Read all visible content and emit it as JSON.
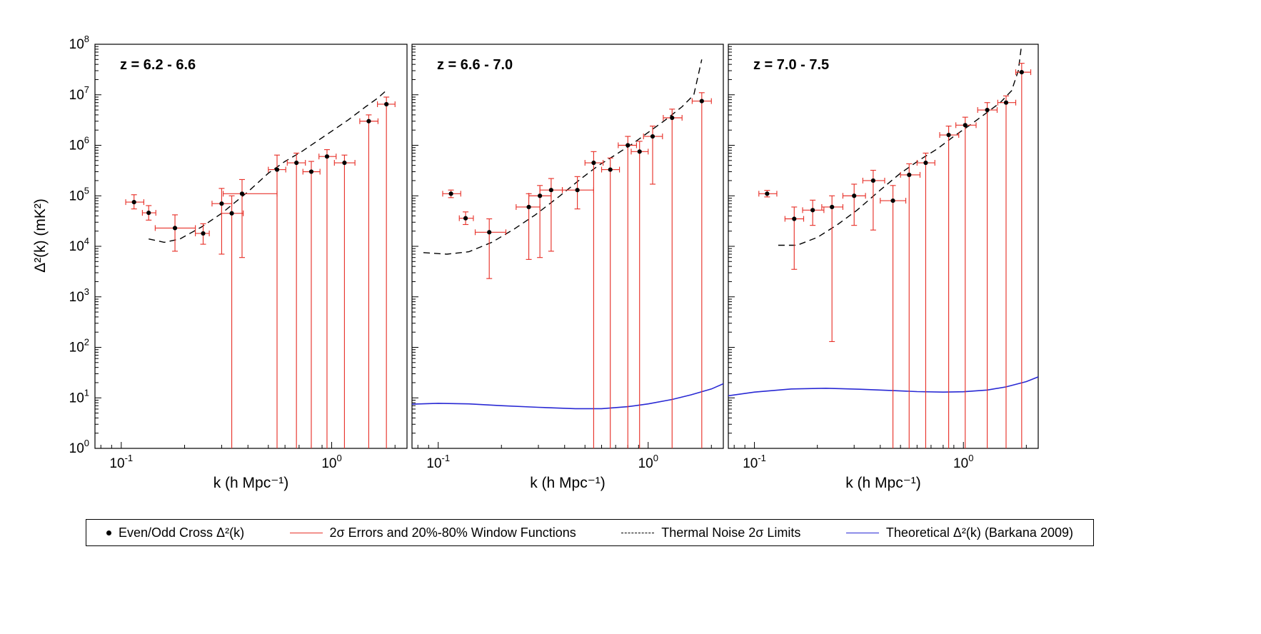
{
  "colors": {
    "error_bar": "#e8332b",
    "noise": "#000000",
    "theory": "#2929d4",
    "marker": "#000000",
    "background": "#ffffff"
  },
  "axes": {
    "ylabel": "Δ²(k)  (mK²)",
    "xscale": "log",
    "yscale": "log",
    "xlim": [
      0.075,
      2.28
    ],
    "ylim": [
      1,
      100000000
    ],
    "x_ticks": [
      {
        "v": 0.1,
        "base": "10",
        "exp": "-1"
      },
      {
        "v": 1,
        "base": "10",
        "exp": "0"
      }
    ],
    "x_minor": [
      0.08,
      0.09,
      0.2,
      0.3,
      0.4,
      0.5,
      0.6,
      0.7,
      0.8,
      0.9,
      2
    ],
    "y_ticks": [
      {
        "v": 1,
        "base": "10",
        "exp": "0"
      },
      {
        "v": 10,
        "base": "10",
        "exp": "1"
      },
      {
        "v": 100,
        "base": "10",
        "exp": "2"
      },
      {
        "v": 1000,
        "base": "10",
        "exp": "3"
      },
      {
        "v": 10000,
        "base": "10",
        "exp": "4"
      },
      {
        "v": 100000,
        "base": "10",
        "exp": "5"
      },
      {
        "v": 1000000,
        "base": "10",
        "exp": "6"
      },
      {
        "v": 10000000,
        "base": "10",
        "exp": "7"
      },
      {
        "v": 100000000,
        "base": "10",
        "exp": "8"
      }
    ]
  },
  "legend": {
    "items": [
      {
        "marker": "dot",
        "label": "Even/Odd Cross Δ²(k)"
      },
      {
        "marker": "red-line",
        "label": "2σ  Errors and 20%-80% Window Functions"
      },
      {
        "marker": "dashed-line",
        "label": "Thermal Noise 2σ Limits"
      },
      {
        "marker": "blue-line",
        "label": "Theoretical Δ²(k) (Barkana 2009)"
      }
    ]
  },
  "chart_data": [
    {
      "type": "scatter",
      "title": "z = 6.2 - 6.6",
      "xlabel": "k (h Mpc⁻¹)",
      "points": [
        {
          "k": 0.115,
          "d2": 75000,
          "xlo": 0.105,
          "xhi": 0.128,
          "ylo": 55000,
          "yhi": 105000
        },
        {
          "k": 0.135,
          "d2": 46000,
          "xlo": 0.126,
          "xhi": 0.146,
          "ylo": 33000,
          "yhi": 64000
        },
        {
          "k": 0.18,
          "d2": 23000,
          "xlo": 0.145,
          "xhi": 0.225,
          "ylo": 8000,
          "yhi": 42000
        },
        {
          "k": 0.245,
          "d2": 18000,
          "xlo": 0.225,
          "xhi": 0.262,
          "ylo": 11000,
          "yhi": 28000
        },
        {
          "k": 0.3,
          "d2": 70000,
          "xlo": 0.27,
          "xhi": 0.335,
          "ylo": 7000,
          "yhi": 140000
        },
        {
          "k": 0.335,
          "d2": 45000,
          "xlo": 0.3,
          "xhi": 0.38,
          "ylo": 1,
          "yhi": 100000
        },
        {
          "k": 0.375,
          "d2": 110000,
          "xlo": 0.305,
          "xhi": 0.55,
          "ylo": 6000,
          "yhi": 210000
        },
        {
          "k": 0.55,
          "d2": 330000,
          "xlo": 0.5,
          "xhi": 0.605,
          "ylo": 1,
          "yhi": 640000
        },
        {
          "k": 0.68,
          "d2": 450000,
          "xlo": 0.615,
          "xhi": 0.75,
          "ylo": 1,
          "yhi": 700000
        },
        {
          "k": 0.8,
          "d2": 300000,
          "xlo": 0.73,
          "xhi": 0.88,
          "ylo": 1,
          "yhi": 480000
        },
        {
          "k": 0.95,
          "d2": 600000,
          "xlo": 0.87,
          "xhi": 1.05,
          "ylo": 1,
          "yhi": 820000
        },
        {
          "k": 1.15,
          "d2": 450000,
          "xlo": 1.03,
          "xhi": 1.29,
          "ylo": 1,
          "yhi": 640000
        },
        {
          "k": 1.5,
          "d2": 3000000,
          "xlo": 1.36,
          "xhi": 1.66,
          "ylo": 1,
          "yhi": 4000000
        },
        {
          "k": 1.82,
          "d2": 6500000,
          "xlo": 1.65,
          "xhi": 2.0,
          "ylo": 1,
          "yhi": 9000000
        }
      ],
      "noise_curve": [
        [
          0.135,
          14000
        ],
        [
          0.16,
          12000
        ],
        [
          0.19,
          14000
        ],
        [
          0.24,
          24000
        ],
        [
          0.3,
          45000
        ],
        [
          0.4,
          120000
        ],
        [
          0.5,
          280000
        ],
        [
          0.6,
          480000
        ],
        [
          0.72,
          750000
        ],
        [
          0.85,
          1200000
        ],
        [
          1.0,
          1900000
        ],
        [
          1.2,
          3200000
        ],
        [
          1.45,
          5800000
        ],
        [
          1.65,
          8500000
        ],
        [
          1.85,
          13000000
        ]
      ],
      "theory_curve": null
    },
    {
      "type": "scatter",
      "title": "z = 6.6 - 7.0",
      "xlabel": "k (h Mpc⁻¹)",
      "points": [
        {
          "k": 0.115,
          "d2": 110000,
          "xlo": 0.105,
          "xhi": 0.128,
          "ylo": 92000,
          "yhi": 130000
        },
        {
          "k": 0.135,
          "d2": 36000,
          "xlo": 0.126,
          "xhi": 0.147,
          "ylo": 27000,
          "yhi": 48000
        },
        {
          "k": 0.175,
          "d2": 19000,
          "xlo": 0.15,
          "xhi": 0.21,
          "ylo": 2300,
          "yhi": 35000
        },
        {
          "k": 0.27,
          "d2": 60000,
          "xlo": 0.235,
          "xhi": 0.305,
          "ylo": 5500,
          "yhi": 110000
        },
        {
          "k": 0.305,
          "d2": 100000,
          "xlo": 0.27,
          "xhi": 0.345,
          "ylo": 6000,
          "yhi": 160000
        },
        {
          "k": 0.345,
          "d2": 130000,
          "xlo": 0.305,
          "xhi": 0.39,
          "ylo": 8000,
          "yhi": 220000
        },
        {
          "k": 0.46,
          "d2": 130000,
          "xlo": 0.39,
          "xhi": 0.55,
          "ylo": 55000,
          "yhi": 240000
        },
        {
          "k": 0.55,
          "d2": 450000,
          "xlo": 0.5,
          "xhi": 0.61,
          "ylo": 1,
          "yhi": 750000
        },
        {
          "k": 0.66,
          "d2": 330000,
          "xlo": 0.6,
          "xhi": 0.73,
          "ylo": 1,
          "yhi": 560000
        },
        {
          "k": 0.8,
          "d2": 1000000,
          "xlo": 0.72,
          "xhi": 0.88,
          "ylo": 1,
          "yhi": 1500000
        },
        {
          "k": 0.91,
          "d2": 750000,
          "xlo": 0.83,
          "xhi": 1.0,
          "ylo": 1,
          "yhi": 1200000
        },
        {
          "k": 1.05,
          "d2": 1500000,
          "xlo": 0.95,
          "xhi": 1.17,
          "ylo": 170000,
          "yhi": 2400000
        },
        {
          "k": 1.3,
          "d2": 3500000,
          "xlo": 1.18,
          "xhi": 1.45,
          "ylo": 1,
          "yhi": 5200000
        },
        {
          "k": 1.8,
          "d2": 7500000,
          "xlo": 1.62,
          "xhi": 2.0,
          "ylo": 1,
          "yhi": 11000000
        }
      ],
      "noise_curve": [
        [
          0.085,
          7500
        ],
        [
          0.11,
          7000
        ],
        [
          0.14,
          7800
        ],
        [
          0.18,
          12000
        ],
        [
          0.23,
          22000
        ],
        [
          0.29,
          42000
        ],
        [
          0.38,
          100000
        ],
        [
          0.48,
          220000
        ],
        [
          0.58,
          400000
        ],
        [
          0.7,
          650000
        ],
        [
          0.85,
          1100000
        ],
        [
          1.0,
          1800000
        ],
        [
          1.2,
          3100000
        ],
        [
          1.45,
          5800000
        ],
        [
          1.65,
          10000000
        ],
        [
          1.8,
          50000000
        ]
      ],
      "theory_curve": [
        [
          0.075,
          7.5
        ],
        [
          0.1,
          7.8
        ],
        [
          0.14,
          7.6
        ],
        [
          0.2,
          7.0
        ],
        [
          0.3,
          6.5
        ],
        [
          0.45,
          6.1
        ],
        [
          0.6,
          6.1
        ],
        [
          0.8,
          6.7
        ],
        [
          1.0,
          7.6
        ],
        [
          1.3,
          9.3
        ],
        [
          1.6,
          11.5
        ],
        [
          2.0,
          15
        ],
        [
          2.28,
          19
        ]
      ]
    },
    {
      "type": "scatter",
      "title": "z = 7.0 - 7.5",
      "xlabel": "k (h Mpc⁻¹)",
      "points": [
        {
          "k": 0.115,
          "d2": 110000,
          "xlo": 0.105,
          "xhi": 0.128,
          "ylo": 95000,
          "yhi": 128000
        },
        {
          "k": 0.155,
          "d2": 35000,
          "xlo": 0.14,
          "xhi": 0.172,
          "ylo": 3500,
          "yhi": 60000
        },
        {
          "k": 0.19,
          "d2": 52000,
          "xlo": 0.17,
          "xhi": 0.215,
          "ylo": 26000,
          "yhi": 82000
        },
        {
          "k": 0.235,
          "d2": 60000,
          "xlo": 0.21,
          "xhi": 0.265,
          "ylo": 130,
          "yhi": 100000
        },
        {
          "k": 0.3,
          "d2": 100000,
          "xlo": 0.265,
          "xhi": 0.34,
          "ylo": 26000,
          "yhi": 170000
        },
        {
          "k": 0.37,
          "d2": 200000,
          "xlo": 0.33,
          "xhi": 0.42,
          "ylo": 21000,
          "yhi": 320000
        },
        {
          "k": 0.46,
          "d2": 80000,
          "xlo": 0.4,
          "xhi": 0.53,
          "ylo": 1,
          "yhi": 160000
        },
        {
          "k": 0.55,
          "d2": 260000,
          "xlo": 0.5,
          "xhi": 0.62,
          "ylo": 1,
          "yhi": 430000
        },
        {
          "k": 0.66,
          "d2": 450000,
          "xlo": 0.6,
          "xhi": 0.73,
          "ylo": 1,
          "yhi": 700000
        },
        {
          "k": 0.85,
          "d2": 1600000,
          "xlo": 0.77,
          "xhi": 0.95,
          "ylo": 1,
          "yhi": 2400000
        },
        {
          "k": 1.02,
          "d2": 2500000,
          "xlo": 0.92,
          "xhi": 1.15,
          "ylo": 1,
          "yhi": 3600000
        },
        {
          "k": 1.3,
          "d2": 5000000,
          "xlo": 1.17,
          "xhi": 1.45,
          "ylo": 1,
          "yhi": 7000000
        },
        {
          "k": 1.6,
          "d2": 7000000,
          "xlo": 1.46,
          "xhi": 1.78,
          "ylo": 1,
          "yhi": 9500000
        },
        {
          "k": 1.9,
          "d2": 28000000,
          "xlo": 1.78,
          "xhi": 2.1,
          "ylo": 1,
          "yhi": 42000000
        }
      ],
      "noise_curve": [
        [
          0.13,
          10500
        ],
        [
          0.16,
          10500
        ],
        [
          0.2,
          15000
        ],
        [
          0.25,
          27000
        ],
        [
          0.31,
          52000
        ],
        [
          0.4,
          130000
        ],
        [
          0.5,
          280000
        ],
        [
          0.62,
          520000
        ],
        [
          0.75,
          850000
        ],
        [
          0.9,
          1500000
        ],
        [
          1.1,
          2700000
        ],
        [
          1.3,
          4500000
        ],
        [
          1.5,
          7000000
        ],
        [
          1.7,
          12000000
        ],
        [
          1.83,
          30000000
        ],
        [
          1.9,
          100000000
        ]
      ],
      "theory_curve": [
        [
          0.075,
          11
        ],
        [
          0.1,
          13
        ],
        [
          0.15,
          15
        ],
        [
          0.22,
          15.5
        ],
        [
          0.32,
          14.8
        ],
        [
          0.45,
          14
        ],
        [
          0.6,
          13.3
        ],
        [
          0.8,
          13
        ],
        [
          1.0,
          13.2
        ],
        [
          1.3,
          14.3
        ],
        [
          1.6,
          16.5
        ],
        [
          2.0,
          21
        ],
        [
          2.28,
          26
        ]
      ]
    }
  ]
}
